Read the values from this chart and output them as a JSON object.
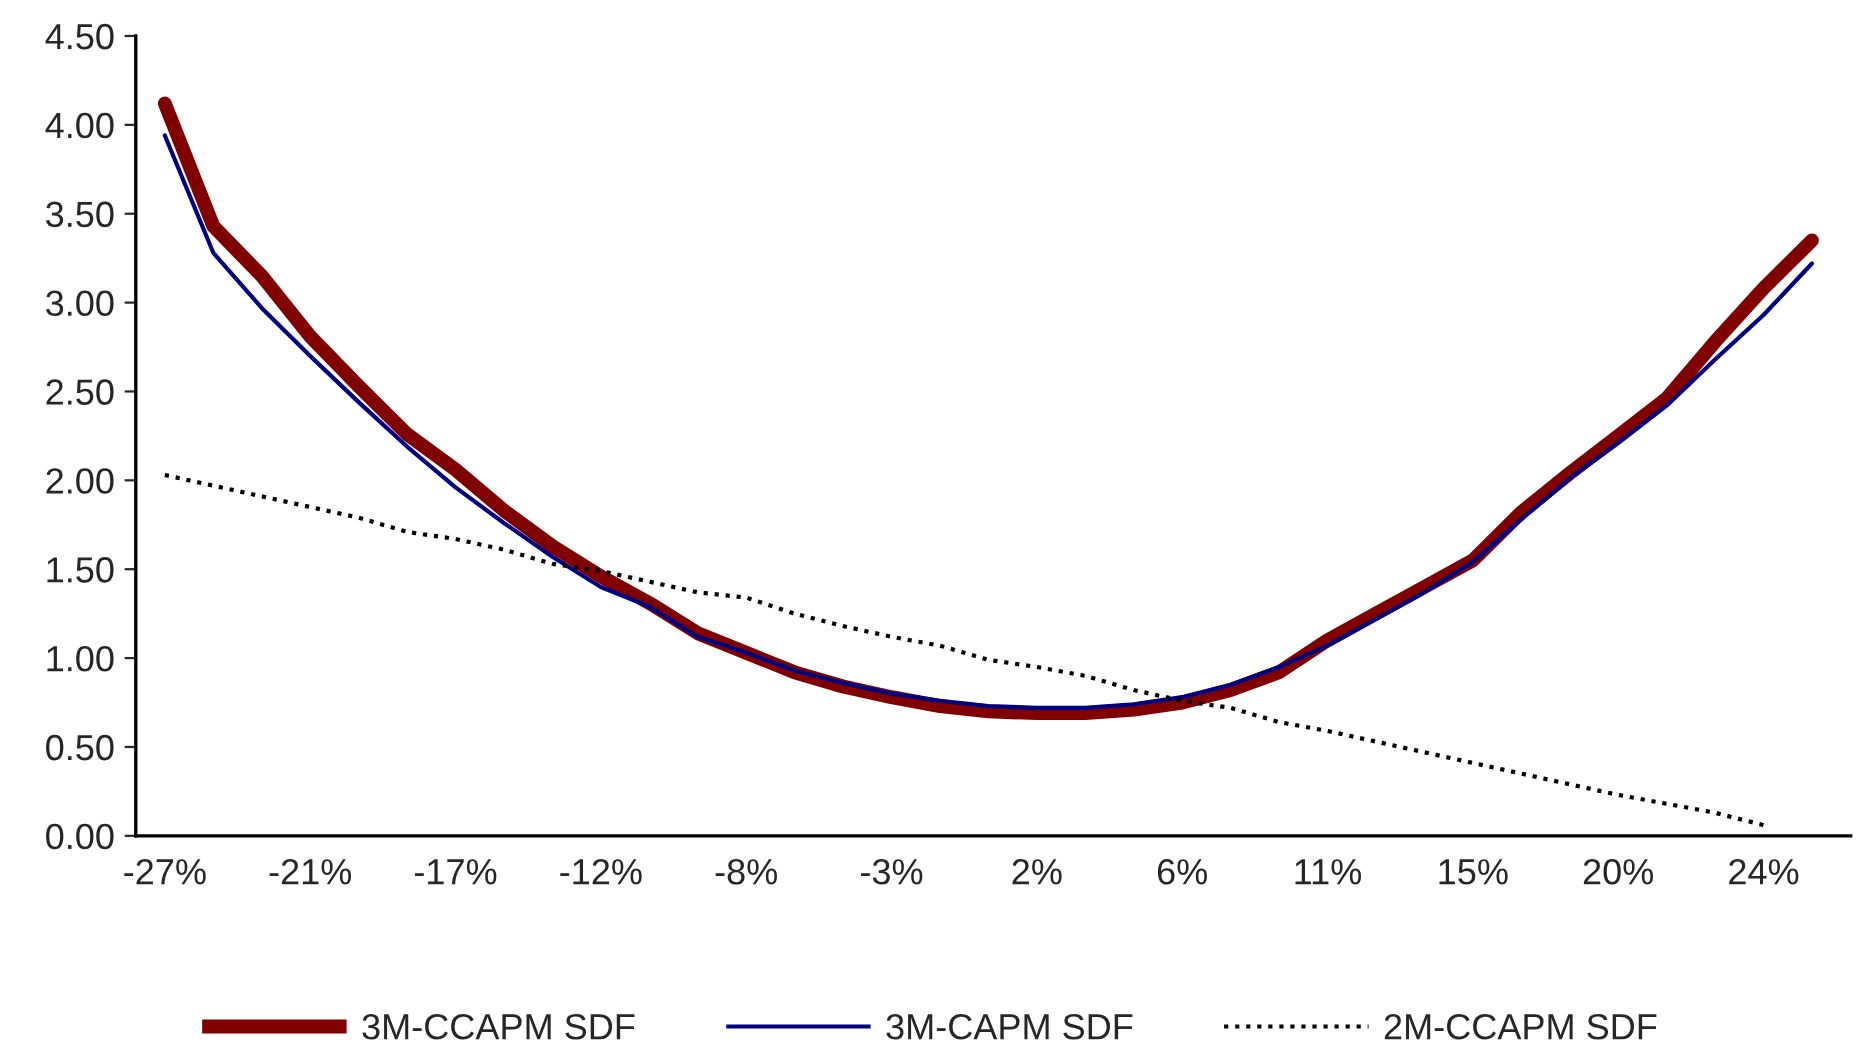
{
  "chart_data": {
    "type": "line",
    "categories": [
      "-27%",
      null,
      null,
      "-21%",
      null,
      null,
      "-17%",
      null,
      null,
      "-12%",
      null,
      null,
      "-8%",
      null,
      null,
      "-3%",
      null,
      null,
      "2%",
      null,
      null,
      "6%",
      null,
      null,
      "11%",
      null,
      null,
      "15%",
      null,
      null,
      "20%",
      null,
      null,
      "24%",
      null
    ],
    "series": [
      {
        "name": "3M-CCAPM SDF",
        "color": "#800000",
        "line_style": "solid",
        "values": [
          4.12,
          3.43,
          3.15,
          2.81,
          2.53,
          2.26,
          2.06,
          1.83,
          1.63,
          1.46,
          1.31,
          1.14,
          1.03,
          0.92,
          0.84,
          0.78,
          0.73,
          0.7,
          0.69,
          0.69,
          0.71,
          0.75,
          0.82,
          0.92,
          1.1,
          1.25,
          1.4,
          1.55,
          1.82,
          2.04,
          2.25,
          2.46,
          2.78,
          3.08,
          3.35
        ]
      },
      {
        "name": "3M-CAPM SDF",
        "color": "#000080",
        "line_style": "solid",
        "values": [
          3.94,
          3.28,
          2.97,
          2.7,
          2.44,
          2.19,
          1.96,
          1.76,
          1.57,
          1.4,
          1.29,
          1.12,
          1.03,
          0.93,
          0.86,
          0.8,
          0.76,
          0.73,
          0.72,
          0.72,
          0.74,
          0.78,
          0.85,
          0.95,
          1.07,
          1.22,
          1.37,
          1.54,
          1.78,
          2.01,
          2.21,
          2.42,
          2.68,
          2.93,
          3.22
        ]
      },
      {
        "name": "2M-CCAPM SDF",
        "color": "#000000",
        "line_style": "dotted",
        "values": [
          2.03,
          1.97,
          1.91,
          1.85,
          1.79,
          1.71,
          1.67,
          1.61,
          1.53,
          1.49,
          1.43,
          1.37,
          1.34,
          1.25,
          1.18,
          1.12,
          1.07,
          0.99,
          0.95,
          0.9,
          0.82,
          0.76,
          0.72,
          0.64,
          0.59,
          0.53,
          0.47,
          0.41,
          0.35,
          0.29,
          0.23,
          0.18,
          0.13,
          0.06,
          null
        ]
      }
    ],
    "ylim": [
      0,
      4.5
    ],
    "yticks": [
      {
        "value": 0,
        "label": "0.00"
      },
      {
        "value": 0.5,
        "label": "0.50"
      },
      {
        "value": 1,
        "label": "1.00"
      },
      {
        "value": 1.5,
        "label": "1.50"
      },
      {
        "value": 2,
        "label": "2.00"
      },
      {
        "value": 2.5,
        "label": "2.50"
      },
      {
        "value": 3,
        "label": "3.00"
      },
      {
        "value": 3.5,
        "label": "3.50"
      },
      {
        "value": 4,
        "label": "4.00"
      },
      {
        "value": 4.5,
        "label": "4.50"
      }
    ],
    "grid": false,
    "legend": "bottom"
  }
}
